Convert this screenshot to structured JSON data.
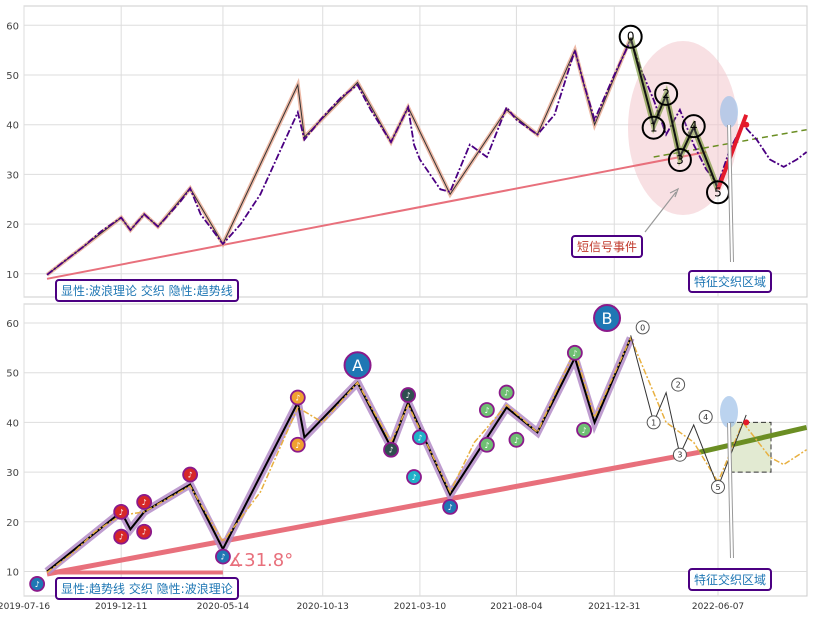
{
  "chart_data": [
    {
      "panel": "top",
      "type": "line",
      "y_ticks": [
        10,
        20,
        30,
        40,
        50,
        60
      ],
      "ylim": [
        7,
        63
      ],
      "x_range": [
        "2019-07-16",
        "2023-01-20"
      ],
      "grid": true,
      "price_series": [
        [
          "2019-08-20",
          9.8
        ],
        [
          "2019-09-15",
          12.5
        ],
        [
          "2019-10-15",
          15.5
        ],
        [
          "2019-11-10",
          18.5
        ],
        [
          "2019-12-11",
          21.3
        ],
        [
          "2019-12-25",
          18.8
        ],
        [
          "2020-01-15",
          22.0
        ],
        [
          "2020-02-05",
          19.5
        ],
        [
          "2020-03-10",
          24.5
        ],
        [
          "2020-03-25",
          27.2
        ],
        [
          "2020-04-10",
          22.0
        ],
        [
          "2020-05-14",
          16.0
        ],
        [
          "2020-06-10",
          20.0
        ],
        [
          "2020-07-10",
          26.0
        ],
        [
          "2020-08-10",
          35.0
        ],
        [
          "2020-09-05",
          42.5
        ],
        [
          "2020-09-15",
          37.0
        ],
        [
          "2020-10-13",
          41.5
        ],
        [
          "2020-11-10",
          45.5
        ],
        [
          "2020-12-05",
          48.0
        ],
        [
          "2020-12-25",
          43.0
        ],
        [
          "2021-01-25",
          36.5
        ],
        [
          "2021-02-20",
          43.5
        ],
        [
          "2021-03-01",
          36.0
        ],
        [
          "2021-03-10",
          33.0
        ],
        [
          "2021-04-10",
          27.0
        ],
        [
          "2021-04-25",
          26.5
        ],
        [
          "2021-05-25",
          36.0
        ],
        [
          "2021-06-20",
          33.5
        ],
        [
          "2021-07-20",
          43.5
        ],
        [
          "2021-08-04",
          41.0
        ],
        [
          "2021-09-05",
          38.0
        ],
        [
          "2021-10-01",
          42.0
        ],
        [
          "2021-11-01",
          55.0
        ],
        [
          "2021-11-15",
          48.0
        ],
        [
          "2021-12-01",
          41.0
        ],
        [
          "2021-12-31",
          50.0
        ],
        [
          "2022-01-25",
          57.0
        ],
        [
          "2022-02-10",
          51.0
        ],
        [
          "2022-03-01",
          45.0
        ],
        [
          "2022-03-20",
          38.0
        ],
        [
          "2022-04-10",
          43.0
        ],
        [
          "2022-05-01",
          36.0
        ],
        [
          "2022-05-20",
          31.0
        ],
        [
          "2022-06-07",
          28.0
        ],
        [
          "2022-06-25",
          35.0
        ],
        [
          "2022-07-15",
          40.0
        ],
        [
          "2022-08-05",
          37.0
        ],
        [
          "2022-08-25",
          33.0
        ],
        [
          "2022-09-15",
          31.5
        ],
        [
          "2022-10-05",
          33.0
        ],
        [
          "2022-10-20",
          34.5
        ]
      ],
      "zigzag": [
        [
          "2019-08-20",
          9.8
        ],
        [
          "2019-12-11",
          21.3
        ],
        [
          "2019-12-25",
          18.8
        ],
        [
          "2020-01-15",
          22.0
        ],
        [
          "2020-02-05",
          19.5
        ],
        [
          "2020-03-25",
          27.2
        ],
        [
          "2020-05-14",
          16.0
        ],
        [
          "2020-09-05",
          48.0
        ],
        [
          "2020-09-15",
          37.5
        ],
        [
          "2020-12-05",
          48.5
        ],
        [
          "2021-01-25",
          36.5
        ],
        [
          "2021-02-20",
          43.5
        ],
        [
          "2021-04-25",
          26.0
        ],
        [
          "2021-07-20",
          43.0
        ],
        [
          "2021-09-05",
          38.0
        ],
        [
          "2021-11-01",
          55.0
        ],
        [
          "2021-12-01",
          40.0
        ],
        [
          "2022-01-25",
          57.5
        ]
      ],
      "wave": [
        [
          "2022-01-25",
          57.5
        ],
        [
          "2022-03-01",
          40.0
        ],
        [
          "2022-03-20",
          46.0
        ],
        [
          "2022-04-10",
          33.5
        ],
        [
          "2022-05-01",
          39.5
        ],
        [
          "2022-06-07",
          27.0
        ],
        [
          "2022-07-20",
          42.0
        ]
      ],
      "wave_labels": [
        "0",
        "1",
        "2",
        "3",
        "4",
        "5"
      ],
      "trendline": [
        [
          "2019-08-20",
          9.0
        ],
        [
          "2022-05-20",
          34.5
        ]
      ],
      "dashed_trend": [
        [
          "2022-03-01",
          33.5
        ],
        [
          "2022-10-20",
          39.0
        ]
      ],
      "annotations": {
        "short_signal": "短信号事件",
        "feature_zone": "特征交织区域",
        "legend": "显性:波浪理论 交织 隐性:趋势线"
      }
    },
    {
      "panel": "bottom",
      "type": "line",
      "y_ticks": [
        10,
        20,
        30,
        40,
        50,
        60
      ],
      "ylim": [
        5,
        63
      ],
      "x_ticks": [
        "2019-07-16",
        "2019-12-11",
        "2020-05-14",
        "2020-10-13",
        "2021-03-10",
        "2021-08-04",
        "2021-12-31",
        "2022-06-07"
      ],
      "grid": true,
      "price_series": [
        [
          "2019-08-20",
          9.8
        ],
        [
          "2019-10-01",
          14.0
        ],
        [
          "2019-11-01",
          18.0
        ],
        [
          "2019-12-11",
          21.3
        ],
        [
          "2020-01-15",
          22.0
        ],
        [
          "2020-03-25",
          27.2
        ],
        [
          "2020-05-14",
          16.0
        ],
        [
          "2020-07-10",
          26.0
        ],
        [
          "2020-09-05",
          43.0
        ],
        [
          "2020-10-13",
          40.0
        ],
        [
          "2020-12-05",
          48.0
        ],
        [
          "2021-01-25",
          36.0
        ],
        [
          "2021-02-20",
          43.5
        ],
        [
          "2021-04-25",
          26.0
        ],
        [
          "2021-06-01",
          36.0
        ],
        [
          "2021-07-20",
          43.5
        ],
        [
          "2021-09-05",
          38.0
        ],
        [
          "2021-11-01",
          54.5
        ],
        [
          "2021-12-01",
          41.0
        ],
        [
          "2022-01-25",
          57.0
        ],
        [
          "2022-03-20",
          40.0
        ],
        [
          "2022-05-01",
          36.0
        ],
        [
          "2022-06-07",
          28.0
        ],
        [
          "2022-07-15",
          40.0
        ],
        [
          "2022-08-25",
          33.0
        ],
        [
          "2022-09-15",
          31.5
        ],
        [
          "2022-10-20",
          34.5
        ]
      ],
      "zigzag": [
        [
          "2019-08-20",
          10.0
        ],
        [
          "2019-12-11",
          22.0
        ],
        [
          "2019-12-25",
          18.5
        ],
        [
          "2020-01-15",
          22.0
        ],
        [
          "2020-03-25",
          27.5
        ],
        [
          "2020-05-14",
          14.5
        ],
        [
          "2020-09-05",
          44.0
        ],
        [
          "2020-09-15",
          37.0
        ],
        [
          "2020-12-05",
          48.0
        ],
        [
          "2021-01-25",
          35.0
        ],
        [
          "2021-02-20",
          44.0
        ],
        [
          "2021-04-25",
          25.5
        ],
        [
          "2021-07-20",
          43.0
        ],
        [
          "2021-09-05",
          38.0
        ],
        [
          "2021-11-01",
          53.0
        ],
        [
          "2021-12-01",
          40.0
        ],
        [
          "2022-01-25",
          57.0
        ]
      ],
      "trendline": [
        [
          "2019-08-20",
          9.5
        ],
        [
          "2022-05-10",
          34.0
        ]
      ],
      "green_trend": [
        [
          "2022-05-10",
          34.0
        ],
        [
          "2022-10-20",
          39.0
        ]
      ],
      "flat_line": [
        [
          "2019-08-20",
          9.8
        ],
        [
          "2020-05-14",
          9.8
        ]
      ],
      "wave": [
        [
          "2022-01-25",
          57.5
        ],
        [
          "2022-03-01",
          40.0
        ],
        [
          "2022-03-20",
          46.0
        ],
        [
          "2022-04-10",
          33.5
        ],
        [
          "2022-05-01",
          39.5
        ],
        [
          "2022-06-07",
          27.0
        ],
        [
          "2022-07-20",
          41.5
        ]
      ],
      "wave_labels": [
        "0",
        "1",
        "2",
        "3",
        "4",
        "5"
      ],
      "big_markers": [
        {
          "label": "A",
          "date": "2020-12-05",
          "value": 51.5
        },
        {
          "label": "B",
          "date": "2021-12-20",
          "value": 61.0
        }
      ],
      "angle_label": "∡31.8°",
      "annotations": {
        "feature_zone": "特征交织区域",
        "legend": "显性:趋势线 交织 隐性:波浪理论"
      },
      "colors": {
        "price": "#e8b040",
        "trend": "#e8707c",
        "zigzag": "#000000",
        "zigzag_halo": "#b48cc8",
        "green": "#6b8e23",
        "marker_red": "#d62728",
        "marker_orange": "#f0a030",
        "marker_dark": "#2f4f4f",
        "marker_blue": "#1f77b4",
        "marker_cyan": "#20b2c8",
        "marker_green": "#6fbf73"
      }
    }
  ]
}
